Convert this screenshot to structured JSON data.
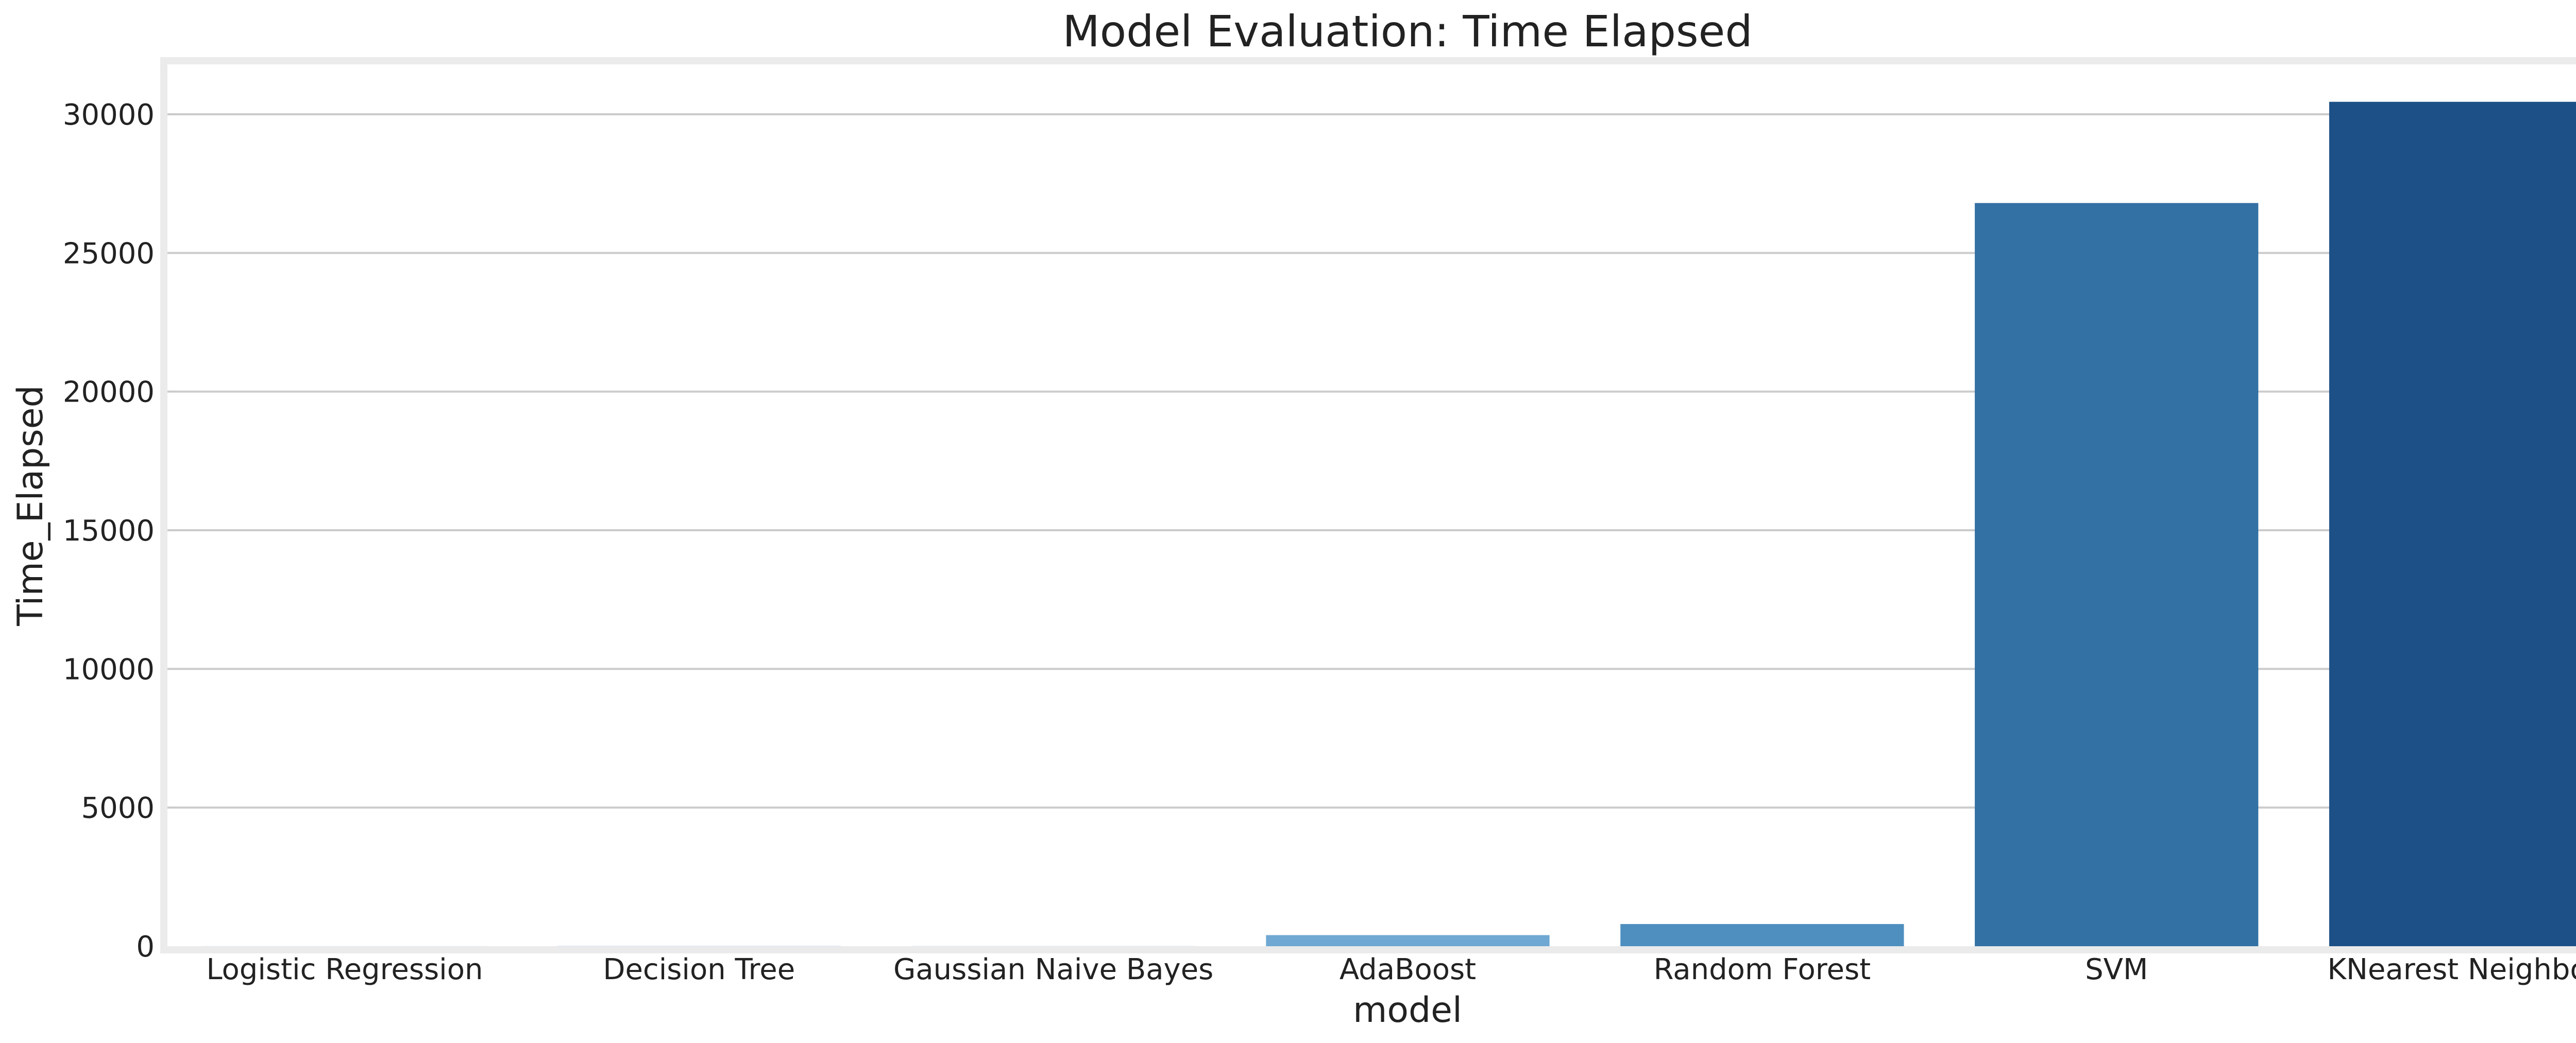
{
  "chart_data": {
    "type": "bar",
    "title": "Model Evaluation: Time Elapsed",
    "xlabel": "model",
    "ylabel": "Time_Elapsed",
    "categories": [
      "Logistic Regression",
      "Decision Tree",
      "Gaussian Naive Bayes",
      "AdaBoost",
      "Random Forest",
      "SVM",
      "KNearest Neighbors"
    ],
    "values": [
      10,
      15,
      5,
      400,
      800,
      26800,
      30450
    ],
    "colors": [
      "#e3eef8",
      "#cfe1f2",
      "#b5d4e9",
      "#93c3df",
      "#6daed5",
      "#4b97c9",
      "#2f7ebc"
    ],
    "bar_colors_visible": [
      "#e3eef8",
      "#cfe1f2",
      "#b5d4e9",
      "#6fa8d3",
      "#4f8fc0",
      "#3370a3",
      "#1c5087"
    ],
    "ylim": [
      0,
      32000
    ],
    "yticks": [
      0,
      5000,
      10000,
      15000,
      20000,
      25000,
      30000
    ],
    "grid": "y",
    "frame_color": "#ebebeb",
    "grid_color": "#cbcbcb"
  }
}
